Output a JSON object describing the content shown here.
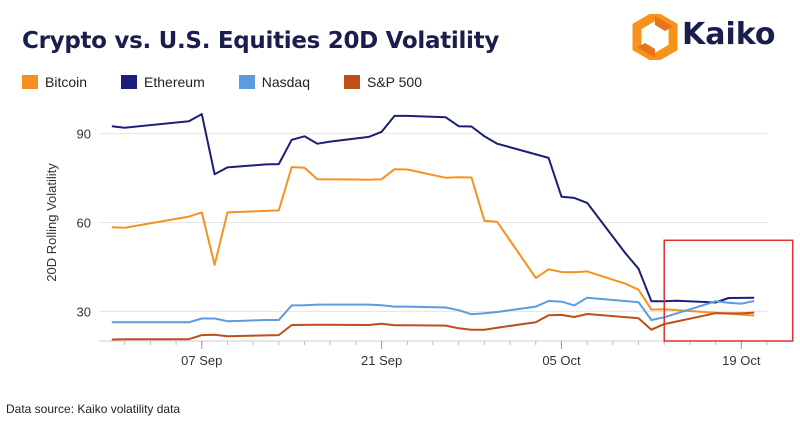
{
  "title": "Crypto vs. U.S. Equities 20D Volatility",
  "brand": {
    "name": "Kaiko",
    "primary_color": "#1a1e4c",
    "accent_color": "#f7931a"
  },
  "footer": "Data source: Kaiko volatility data",
  "chart_data": {
    "type": "line",
    "title": "Crypto vs. U.S. Equities 20D Volatility",
    "xlabel": "",
    "ylabel": "20D Rolling Volatility",
    "ylim": [
      20,
      100
    ],
    "yticks": [
      30,
      60,
      90
    ],
    "xlim": [
      "2021-08-30",
      "2021-10-21"
    ],
    "xticks": [
      {
        "date": "2021-09-07",
        "label": "07 Sep"
      },
      {
        "date": "2021-09-21",
        "label": "21 Sep"
      },
      {
        "date": "2021-10-05",
        "label": "05 Oct"
      },
      {
        "date": "2021-10-19",
        "label": "19 Oct"
      }
    ],
    "grid": "horizontal",
    "legend_position": "top-left",
    "highlight": {
      "x_range": [
        "2021-10-13",
        "2021-10-23"
      ],
      "y_range": [
        20,
        54
      ],
      "color": "#e03030"
    },
    "series": [
      {
        "name": "Bitcoin",
        "color": "#f39221",
        "points": [
          [
            "2021-08-31",
            58.4
          ],
          [
            "2021-09-01",
            58.2
          ],
          [
            "2021-09-06",
            62.0
          ],
          [
            "2021-09-07",
            63.4
          ],
          [
            "2021-09-08",
            45.7
          ],
          [
            "2021-09-09",
            63.4
          ],
          [
            "2021-09-12",
            63.9
          ],
          [
            "2021-09-13",
            64.1
          ],
          [
            "2021-09-14",
            78.7
          ],
          [
            "2021-09-15",
            78.5
          ],
          [
            "2021-09-16",
            74.6
          ],
          [
            "2021-09-19",
            74.5
          ],
          [
            "2021-09-20",
            74.4
          ],
          [
            "2021-09-21",
            74.6
          ],
          [
            "2021-09-22",
            78.0
          ],
          [
            "2021-09-23",
            77.9
          ],
          [
            "2021-09-26",
            75.1
          ],
          [
            "2021-09-27",
            75.3
          ],
          [
            "2021-09-28",
            75.2
          ],
          [
            "2021-09-29",
            60.6
          ],
          [
            "2021-09-30",
            60.2
          ],
          [
            "2021-10-03",
            41.3
          ],
          [
            "2021-10-04",
            44.2
          ],
          [
            "2021-10-05",
            43.3
          ],
          [
            "2021-10-06",
            43.2
          ],
          [
            "2021-10-07",
            43.5
          ],
          [
            "2021-10-10",
            39.3
          ],
          [
            "2021-10-11",
            37.3
          ],
          [
            "2021-10-12",
            30.6
          ],
          [
            "2021-10-13",
            30.7
          ],
          [
            "2021-10-20",
            28.6
          ]
        ]
      },
      {
        "name": "Ethereum",
        "color": "#1b1f7a",
        "points": [
          [
            "2021-08-31",
            92.5
          ],
          [
            "2021-09-01",
            92.0
          ],
          [
            "2021-09-06",
            94.2
          ],
          [
            "2021-09-07",
            96.6
          ],
          [
            "2021-09-08",
            76.3
          ],
          [
            "2021-09-09",
            78.6
          ],
          [
            "2021-09-12",
            79.6
          ],
          [
            "2021-09-13",
            79.7
          ],
          [
            "2021-09-14",
            87.9
          ],
          [
            "2021-09-15",
            89.1
          ],
          [
            "2021-09-16",
            86.6
          ],
          [
            "2021-09-17",
            87.3
          ],
          [
            "2021-09-20",
            88.9
          ],
          [
            "2021-09-21",
            90.6
          ],
          [
            "2021-09-22",
            96.0
          ],
          [
            "2021-09-23",
            96.0
          ],
          [
            "2021-09-26",
            95.5
          ],
          [
            "2021-09-27",
            92.5
          ],
          [
            "2021-09-28",
            92.4
          ],
          [
            "2021-09-29",
            89.1
          ],
          [
            "2021-09-30",
            86.6
          ],
          [
            "2021-10-04",
            81.8
          ],
          [
            "2021-10-05",
            68.7
          ],
          [
            "2021-10-06",
            68.3
          ],
          [
            "2021-10-07",
            66.6
          ],
          [
            "2021-10-10",
            49.5
          ],
          [
            "2021-10-11",
            44.4
          ],
          [
            "2021-10-12",
            33.4
          ],
          [
            "2021-10-13",
            33.4
          ],
          [
            "2021-10-14",
            33.6
          ],
          [
            "2021-10-17",
            33.0
          ],
          [
            "2021-10-18",
            34.5
          ],
          [
            "2021-10-20",
            34.6
          ]
        ]
      },
      {
        "name": "Nasdaq",
        "color": "#5b9bde",
        "points": [
          [
            "2021-08-31",
            26.3
          ],
          [
            "2021-09-01",
            26.3
          ],
          [
            "2021-09-06",
            26.3
          ],
          [
            "2021-09-07",
            27.6
          ],
          [
            "2021-09-08",
            27.6
          ],
          [
            "2021-09-09",
            26.7
          ],
          [
            "2021-09-12",
            27.1
          ],
          [
            "2021-09-13",
            27.1
          ],
          [
            "2021-09-14",
            32.0
          ],
          [
            "2021-09-15",
            32.1
          ],
          [
            "2021-09-16",
            32.3
          ],
          [
            "2021-09-20",
            32.3
          ],
          [
            "2021-09-21",
            32.1
          ],
          [
            "2021-09-22",
            31.6
          ],
          [
            "2021-09-23",
            31.6
          ],
          [
            "2021-09-26",
            31.3
          ],
          [
            "2021-09-27",
            30.4
          ],
          [
            "2021-09-28",
            29.0
          ],
          [
            "2021-09-29",
            29.4
          ],
          [
            "2021-09-30",
            29.8
          ],
          [
            "2021-10-03",
            31.6
          ],
          [
            "2021-10-04",
            33.5
          ],
          [
            "2021-10-05",
            33.3
          ],
          [
            "2021-10-06",
            32.0
          ],
          [
            "2021-10-07",
            34.6
          ],
          [
            "2021-10-11",
            33.1
          ],
          [
            "2021-10-12",
            27.1
          ],
          [
            "2021-10-13",
            28.0
          ],
          [
            "2021-10-17",
            33.4
          ],
          [
            "2021-10-18",
            32.9
          ],
          [
            "2021-10-19",
            32.6
          ],
          [
            "2021-10-20",
            33.5
          ]
        ]
      },
      {
        "name": "S&P 500",
        "color": "#bd4f17",
        "points": [
          [
            "2021-08-31",
            20.5
          ],
          [
            "2021-09-01",
            20.6
          ],
          [
            "2021-09-06",
            20.6
          ],
          [
            "2021-09-07",
            22.0
          ],
          [
            "2021-09-08",
            22.1
          ],
          [
            "2021-09-09",
            21.6
          ],
          [
            "2021-09-12",
            21.9
          ],
          [
            "2021-09-13",
            22.0
          ],
          [
            "2021-09-14",
            25.4
          ],
          [
            "2021-09-16",
            25.5
          ],
          [
            "2021-09-20",
            25.4
          ],
          [
            "2021-09-21",
            25.8
          ],
          [
            "2021-09-22",
            25.3
          ],
          [
            "2021-09-23",
            25.3
          ],
          [
            "2021-09-26",
            25.2
          ],
          [
            "2021-09-27",
            24.3
          ],
          [
            "2021-09-28",
            23.8
          ],
          [
            "2021-09-29",
            23.8
          ],
          [
            "2021-09-30",
            24.5
          ],
          [
            "2021-10-03",
            26.3
          ],
          [
            "2021-10-04",
            28.7
          ],
          [
            "2021-10-05",
            28.8
          ],
          [
            "2021-10-06",
            28.1
          ],
          [
            "2021-10-07",
            29.1
          ],
          [
            "2021-10-11",
            27.7
          ],
          [
            "2021-10-12",
            23.8
          ],
          [
            "2021-10-13",
            25.7
          ],
          [
            "2021-10-17",
            29.4
          ],
          [
            "2021-10-19",
            29.3
          ],
          [
            "2021-10-20",
            29.6
          ]
        ]
      }
    ]
  }
}
